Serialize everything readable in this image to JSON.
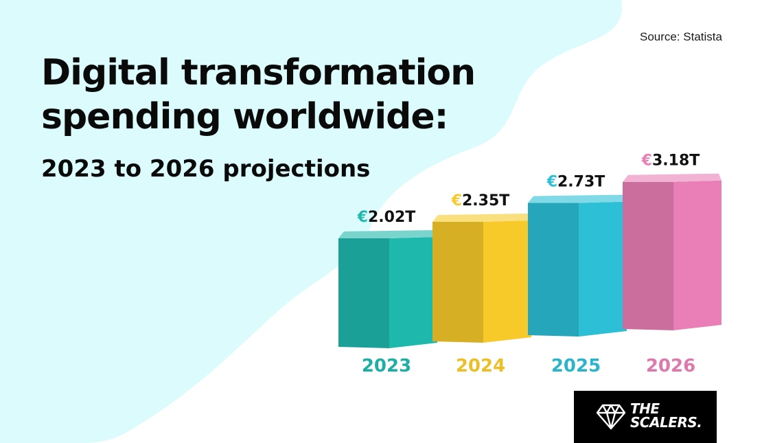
{
  "header": {
    "title": "Digital transformation spending worldwide:",
    "subtitle": "2023 to 2026 projections",
    "source": "Source: Statista"
  },
  "logo": {
    "line1": "THE",
    "line2": "SCALERS."
  },
  "chart_data": {
    "type": "bar",
    "title": "Digital transformation spending worldwide:",
    "subtitle": "2023 to 2026 projections",
    "categories": [
      "2023",
      "2024",
      "2025",
      "2026"
    ],
    "values": [
      2.02,
      2.35,
      2.73,
      3.18
    ],
    "value_labels": [
      "2.02T",
      "2.35T",
      "2.73T",
      "3.18T"
    ],
    "currency_symbol": "€",
    "unit": "trillion euros",
    "colors": [
      "#1fb8ad",
      "#f7c929",
      "#2cbfd6",
      "#e97fb6"
    ],
    "grid": false,
    "legend": "none"
  }
}
